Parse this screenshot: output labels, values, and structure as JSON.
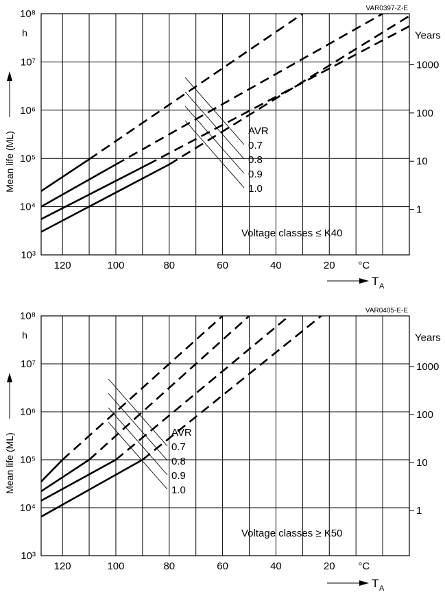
{
  "chart_data": [
    {
      "type": "line",
      "code": "VAR0397-Z-E",
      "xlabel": "T",
      "xlabel_sub": "A",
      "x_unit": "°C",
      "x_ticks": [
        "120",
        "100",
        "80",
        "60",
        "40",
        "20"
      ],
      "x_range": [
        -10,
        128
      ],
      "x_reversed": true,
      "ylabel": "Mean life (ML)",
      "y_unit": "h",
      "y_scale": "log",
      "y_range": [
        1000,
        100000000
      ],
      "y_ticks": [
        "10³",
        "10⁴",
        "10⁵",
        "10⁶",
        "10⁷",
        "10⁸"
      ],
      "y2_label": "Years",
      "y2_ticks": [
        "1",
        "10",
        "100",
        "1000"
      ],
      "y2_values_hours": [
        8760,
        87600,
        876000,
        8760000
      ],
      "legend_title": "AVR",
      "annotation": "Voltage classes ≤ K40",
      "grid": true,
      "series": [
        {
          "name": "0.7",
          "solid": [
            [
              128,
              21000
            ],
            [
              110,
              96000
            ]
          ],
          "dashed": [
            [
              110,
              96000
            ],
            [
              30,
              100000000
            ]
          ]
        },
        {
          "name": "0.8",
          "solid": [
            [
              128,
              10000
            ],
            [
              100,
              75000
            ]
          ],
          "dashed": [
            [
              100,
              75000
            ],
            [
              0,
              100000000
            ]
          ]
        },
        {
          "name": "0.9",
          "solid": [
            [
              128,
              5500
            ],
            [
              88,
              75000
            ]
          ],
          "dashed": [
            [
              88,
              75000
            ],
            [
              -10,
              55000000
            ]
          ]
        },
        {
          "name": "1.0",
          "solid": [
            [
              128,
              3000
            ],
            [
              80,
              75000
            ]
          ],
          "dashed": [
            [
              80,
              75000
            ],
            [
              -10,
              90000000
            ]
          ]
        }
      ]
    },
    {
      "type": "line",
      "code": "VAR0405-E-E",
      "xlabel": "T",
      "xlabel_sub": "A",
      "x_unit": "°C",
      "x_ticks": [
        "120",
        "100",
        "80",
        "60",
        "40",
        "20"
      ],
      "x_range": [
        -10,
        128
      ],
      "x_reversed": true,
      "ylabel": "Mean life (ML)",
      "y_unit": "h",
      "y_scale": "log",
      "y_range": [
        1000,
        100000000
      ],
      "y_ticks": [
        "10³",
        "10⁴",
        "10⁵",
        "10⁶",
        "10⁷",
        "10⁸"
      ],
      "y2_label": "Years",
      "y2_ticks": [
        "1",
        "10",
        "100",
        "1000"
      ],
      "y2_values_hours": [
        8760,
        87600,
        876000,
        8760000
      ],
      "legend_title": "AVR",
      "annotation": "Voltage classes ≥ K50",
      "grid": true,
      "series": [
        {
          "name": "0.7",
          "solid": [
            [
              128,
              35000
            ],
            [
              120,
              100000
            ]
          ],
          "dashed": [
            [
              120,
              100000
            ],
            [
              60,
              100000000
            ]
          ]
        },
        {
          "name": "0.8",
          "solid": [
            [
              128,
              22000
            ],
            [
              110,
              100000
            ]
          ],
          "dashed": [
            [
              110,
              100000
            ],
            [
              50,
              100000000
            ]
          ]
        },
        {
          "name": "0.9",
          "solid": [
            [
              128,
              14000
            ],
            [
              100,
              100000
            ]
          ],
          "dashed": [
            [
              100,
              100000
            ],
            [
              35,
              100000000
            ]
          ]
        },
        {
          "name": "1.0",
          "solid": [
            [
              128,
              6500
            ],
            [
              90,
              100000
            ]
          ],
          "dashed": [
            [
              90,
              100000
            ],
            [
              23,
              100000000
            ]
          ]
        }
      ]
    }
  ]
}
